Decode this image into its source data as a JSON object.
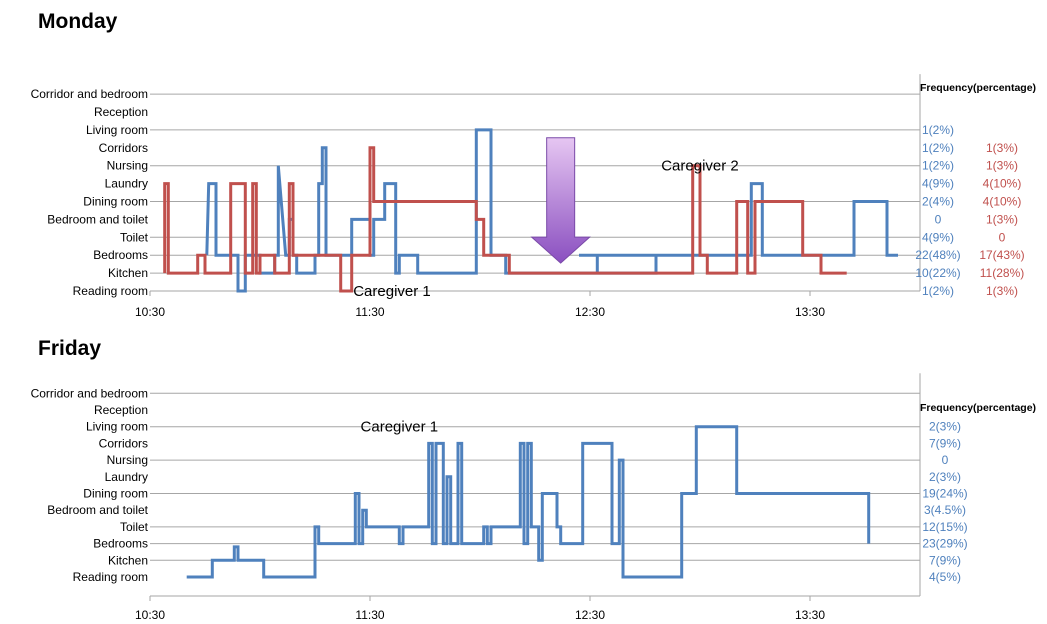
{
  "colors": {
    "caregiver1": "#4f81bd",
    "caregiver2": "#c0504d",
    "grid": "#a6a6a6",
    "arrow_top": "#e6c6f2",
    "arrow_bottom": "#8a4fc0"
  },
  "chart_data": [
    {
      "type": "line",
      "subtype": "step",
      "title": "Monday",
      "categories": [
        "Reading room",
        "Kitchen",
        "Bedrooms",
        "Toilet",
        "Bedroom and toilet",
        "Dining room",
        "Laundry",
        "Nursing",
        "Corridors",
        "Living room",
        "Reception",
        "Corridor and bedroom"
      ],
      "gridlines": [
        "Kitchen",
        "Bedrooms",
        "Toilet",
        "Dining room",
        "Nursing",
        "Living room",
        "Corridor and bedroom"
      ],
      "xticks": [
        "10:30",
        "11:30",
        "12:30",
        "13:30"
      ],
      "xlim_minutes_after_1030": [
        0,
        210
      ],
      "frequency_header": "Frequency(percentage)",
      "annotations": [
        {
          "text": "Caregiver 1",
          "x": "11:36",
          "category": "Reading room"
        },
        {
          "text": "Caregiver 2",
          "x": "13:00",
          "category": "Nursing"
        }
      ],
      "arrow": {
        "x": "12:22",
        "from": "Corridors",
        "to": "Kitchen"
      },
      "series": [
        {
          "name": "Caregiver 1",
          "frequency": [
            "1(2%)",
            "10(22%)",
            "22(48%)",
            "4(9%)",
            "0",
            "2(4%)",
            "4(9%)",
            "1(2%)",
            "1(2%)",
            "1(2%)",
            "",
            ""
          ],
          "steps": [
            [
              15.5,
              2
            ],
            [
              16,
              6
            ],
            [
              18,
              6
            ],
            [
              18,
              2
            ],
            [
              24,
              2
            ],
            [
              24,
              0
            ],
            [
              26,
              0
            ],
            [
              26,
              2
            ],
            [
              30,
              2
            ],
            [
              30,
              1
            ],
            [
              34,
              1
            ],
            [
              34,
              2
            ],
            [
              35,
              2
            ],
            [
              35,
              7
            ],
            [
              37,
              2
            ],
            [
              38,
              2
            ],
            [
              38,
              4
            ],
            [
              39,
              4
            ],
            [
              39,
              2
            ],
            [
              40,
              2
            ],
            [
              40,
              1
            ],
            [
              45,
              1
            ],
            [
              45,
              2
            ],
            [
              46,
              2
            ],
            [
              46,
              6
            ],
            [
              47,
              6
            ],
            [
              47,
              8
            ],
            [
              48,
              8
            ],
            [
              48,
              2
            ],
            [
              55,
              2
            ],
            [
              55,
              4
            ],
            [
              60,
              4
            ],
            [
              60,
              2
            ],
            [
              61,
              2
            ],
            [
              61,
              4
            ],
            [
              64,
              4
            ],
            [
              64,
              6
            ],
            [
              67,
              6
            ],
            [
              67,
              1
            ],
            [
              68,
              1
            ],
            [
              68,
              2
            ],
            [
              73,
              2
            ],
            [
              73,
              1
            ],
            [
              89,
              1
            ],
            [
              89,
              9
            ],
            [
              93,
              9
            ],
            [
              93,
              2
            ],
            [
              97,
              2
            ],
            [
              97,
              1
            ],
            [
              138,
              1
            ],
            [
              138,
              2
            ],
            [
              117,
              2
            ],
            [
              122,
              2
            ],
            [
              122,
              1
            ],
            [
              138,
              1
            ],
            [
              138,
              2
            ],
            [
              152,
              2
            ],
            [
              152,
              2
            ],
            [
              162,
              2
            ],
            [
              162,
              2
            ],
            [
              164,
              2
            ],
            [
              164,
              6
            ],
            [
              167,
              6
            ],
            [
              167,
              2
            ],
            [
              192,
              2
            ],
            [
              192,
              5
            ],
            [
              201,
              5
            ],
            [
              201,
              2
            ],
            [
              204,
              2
            ]
          ]
        },
        {
          "name": "Caregiver 2",
          "frequency": [
            "1(3%)",
            "11(28%)",
            "17(43%)",
            "0",
            "1(3%)",
            "4(10%)",
            "4(10%)",
            "1(3%)",
            "1(3%)",
            "",
            "",
            ""
          ],
          "steps": [
            [
              4,
              1
            ],
            [
              4,
              6
            ],
            [
              5,
              6
            ],
            [
              5,
              1
            ],
            [
              13,
              1
            ],
            [
              13,
              2
            ],
            [
              15,
              2
            ],
            [
              15,
              1
            ],
            [
              22,
              1
            ],
            [
              22,
              6
            ],
            [
              26,
              6
            ],
            [
              26,
              1
            ],
            [
              28,
              1
            ],
            [
              28,
              6
            ],
            [
              29,
              6
            ],
            [
              29,
              1
            ],
            [
              30,
              1
            ],
            [
              30,
              2
            ],
            [
              34,
              2
            ],
            [
              34,
              1
            ],
            [
              38,
              1
            ],
            [
              38,
              6
            ],
            [
              39,
              6
            ],
            [
              39,
              2
            ],
            [
              45,
              2
            ],
            [
              45,
              2
            ],
            [
              52,
              2
            ],
            [
              52,
              0
            ],
            [
              55,
              0
            ],
            [
              55,
              2
            ],
            [
              60,
              2
            ],
            [
              60,
              8
            ],
            [
              61,
              8
            ],
            [
              61,
              5
            ],
            [
              89,
              5
            ],
            [
              89,
              4
            ],
            [
              91,
              4
            ],
            [
              91,
              2
            ],
            [
              98,
              2
            ],
            [
              98,
              1
            ],
            [
              103,
              1
            ],
            [
              103,
              1
            ],
            [
              148,
              1
            ],
            [
              148,
              7
            ],
            [
              150,
              7
            ],
            [
              150,
              2
            ],
            [
              152,
              2
            ],
            [
              152,
              1
            ],
            [
              160,
              1
            ],
            [
              160,
              5
            ],
            [
              163,
              5
            ],
            [
              163,
              1
            ],
            [
              165,
              1
            ],
            [
              165,
              5
            ],
            [
              178,
              5
            ],
            [
              178,
              2
            ],
            [
              183,
              2
            ],
            [
              183,
              1
            ],
            [
              190,
              1
            ]
          ]
        }
      ]
    },
    {
      "type": "line",
      "subtype": "step",
      "title": "Friday",
      "categories": [
        "Reading room",
        "Kitchen",
        "Bedrooms",
        "Toilet",
        "Bedroom and toilet",
        "Dining room",
        "Laundry",
        "Nursing",
        "Corridors",
        "Living room",
        "Reception",
        "Corridor and bedroom"
      ],
      "gridlines": [
        "Kitchen",
        "Bedrooms",
        "Toilet",
        "Dining room",
        "Nursing",
        "Living room",
        "Corridor and bedroom"
      ],
      "xticks": [
        "10:30",
        "11:30",
        "12:30",
        "13:30"
      ],
      "xlim_minutes_after_1030": [
        0,
        210
      ],
      "frequency_header": "Frequency(percentage)",
      "annotations": [
        {
          "text": "Caregiver 1",
          "x": "11:38",
          "category": "Living room"
        }
      ],
      "series": [
        {
          "name": "Caregiver 1",
          "frequency": [
            "4(5%)",
            "7(9%)",
            "23(29%)",
            "12(15%)",
            "3(4.5%)",
            "19(24%)",
            "2(3%)",
            "0",
            "7(9%)",
            "2(3%)",
            "",
            ""
          ],
          "steps": [
            [
              10,
              0
            ],
            [
              17,
              0
            ],
            [
              17,
              1
            ],
            [
              23,
              1
            ],
            [
              23,
              1.8
            ],
            [
              24,
              1.8
            ],
            [
              24,
              1
            ],
            [
              31,
              1
            ],
            [
              31,
              0
            ],
            [
              45,
              0
            ],
            [
              45,
              3
            ],
            [
              46,
              3
            ],
            [
              46,
              2
            ],
            [
              56,
              2
            ],
            [
              56,
              5
            ],
            [
              57,
              5
            ],
            [
              57,
              2
            ],
            [
              58,
              2
            ],
            [
              58,
              4
            ],
            [
              59,
              4
            ],
            [
              59,
              3
            ],
            [
              68,
              3
            ],
            [
              68,
              2
            ],
            [
              69,
              2
            ],
            [
              69,
              3
            ],
            [
              76,
              3
            ],
            [
              76,
              8
            ],
            [
              77,
              8
            ],
            [
              77,
              2
            ],
            [
              78,
              2
            ],
            [
              78,
              8
            ],
            [
              80,
              8
            ],
            [
              80,
              2
            ],
            [
              81,
              2
            ],
            [
              81,
              6
            ],
            [
              82,
              6
            ],
            [
              82,
              2
            ],
            [
              84,
              2
            ],
            [
              84,
              8
            ],
            [
              85,
              8
            ],
            [
              85,
              2
            ],
            [
              91,
              2
            ],
            [
              91,
              3
            ],
            [
              92,
              3
            ],
            [
              92,
              2
            ],
            [
              93,
              2
            ],
            [
              93,
              3
            ],
            [
              101,
              3
            ],
            [
              101,
              8
            ],
            [
              102,
              8
            ],
            [
              102,
              2
            ],
            [
              103,
              2
            ],
            [
              103,
              8
            ],
            [
              104,
              8
            ],
            [
              104,
              3
            ],
            [
              106,
              3
            ],
            [
              106,
              1
            ],
            [
              107,
              1
            ],
            [
              107,
              5
            ],
            [
              111,
              5
            ],
            [
              111,
              3
            ],
            [
              112,
              3
            ],
            [
              112,
              2
            ],
            [
              118,
              2
            ],
            [
              118,
              8
            ],
            [
              126,
              8
            ],
            [
              126,
              2
            ],
            [
              128,
              2
            ],
            [
              128,
              7
            ],
            [
              129,
              7
            ],
            [
              129,
              0
            ],
            [
              145,
              0
            ],
            [
              145,
              5
            ],
            [
              149,
              5
            ],
            [
              149,
              9
            ],
            [
              160,
              9
            ],
            [
              160,
              5
            ],
            [
              196,
              5
            ],
            [
              196,
              2
            ]
          ]
        }
      ]
    }
  ]
}
